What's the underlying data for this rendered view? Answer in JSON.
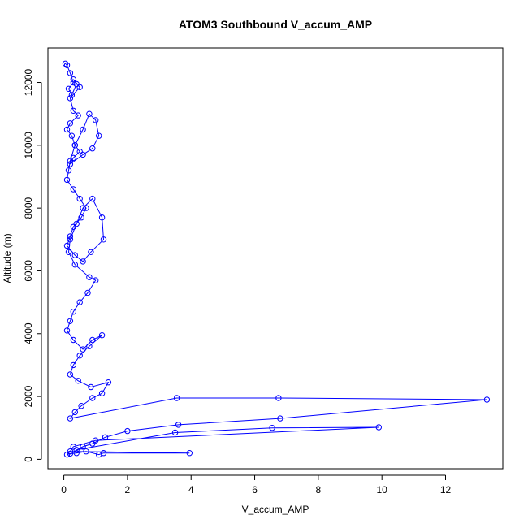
{
  "chart_data": {
    "type": "line",
    "title": "ATOM3 Southbound V_accum_AMP",
    "xlabel": "V_accum_AMP",
    "ylabel": "Altitude (m)",
    "xlim": [
      -0.5,
      13.8
    ],
    "ylim": [
      -300,
      13100
    ],
    "x_ticks": [
      0,
      2,
      4,
      6,
      8,
      10,
      12
    ],
    "y_ticks": [
      0,
      2000,
      4000,
      6000,
      8000,
      10000,
      12000
    ],
    "markers": "open circles",
    "series": [
      {
        "color": "#0000ff",
        "x": [
          0.05,
          0.1,
          0.2,
          0.3,
          0.15,
          0.25,
          0.4,
          0.3,
          0.5,
          0.2,
          0.3,
          0.45,
          0.2,
          0.1,
          0.25,
          0.35,
          0.5,
          0.3,
          0.2,
          0.6,
          0.9,
          1.1,
          1.0,
          0.8,
          0.6,
          0.35,
          0.2,
          0.15,
          0.1,
          0.3,
          0.5,
          0.7,
          0.55,
          0.3,
          0.2,
          0.1,
          0.35,
          0.6,
          0.85,
          1.25,
          1.2,
          0.9,
          0.6,
          0.4,
          0.2,
          0.15,
          0.35,
          0.8,
          1.0,
          0.75,
          0.5,
          0.3,
          0.2,
          0.1,
          0.3,
          0.6,
          0.9,
          1.2,
          0.8,
          0.5,
          0.3,
          0.2,
          0.45,
          0.85,
          1.4,
          1.2,
          0.9,
          0.55,
          0.35,
          0.2,
          3.55,
          6.75,
          13.3,
          6.8,
          3.6,
          2.0,
          1.3,
          0.9,
          0.6,
          0.4,
          3.5,
          6.55,
          9.9,
          1.0,
          0.3,
          0.2,
          3.95,
          1.25,
          1.1,
          0.7,
          0.4,
          0.2,
          0.1
        ],
        "y": [
          12600,
          12550,
          12300,
          12000,
          11800,
          11600,
          11950,
          12100,
          11850,
          11500,
          11100,
          10950,
          10700,
          10500,
          10300,
          10000,
          9800,
          9600,
          9400,
          9700,
          9900,
          10300,
          10800,
          11000,
          10500,
          10000,
          9500,
          9200,
          8900,
          8600,
          8300,
          8000,
          7700,
          7400,
          7100,
          6800,
          6500,
          6300,
          6600,
          7000,
          7700,
          8300,
          8000,
          7500,
          7000,
          6600,
          6200,
          5800,
          5700,
          5300,
          5000,
          4700,
          4400,
          4100,
          3800,
          3500,
          3800,
          3950,
          3600,
          3300,
          3000,
          2700,
          2500,
          2300,
          2450,
          2100,
          1950,
          1700,
          1500,
          1300,
          1950,
          1950,
          1900,
          1300,
          1100,
          900,
          700,
          500,
          400,
          300,
          850,
          1000,
          1020,
          600,
          400,
          250,
          200,
          200,
          150,
          250,
          200,
          180,
          150
        ]
      }
    ]
  }
}
